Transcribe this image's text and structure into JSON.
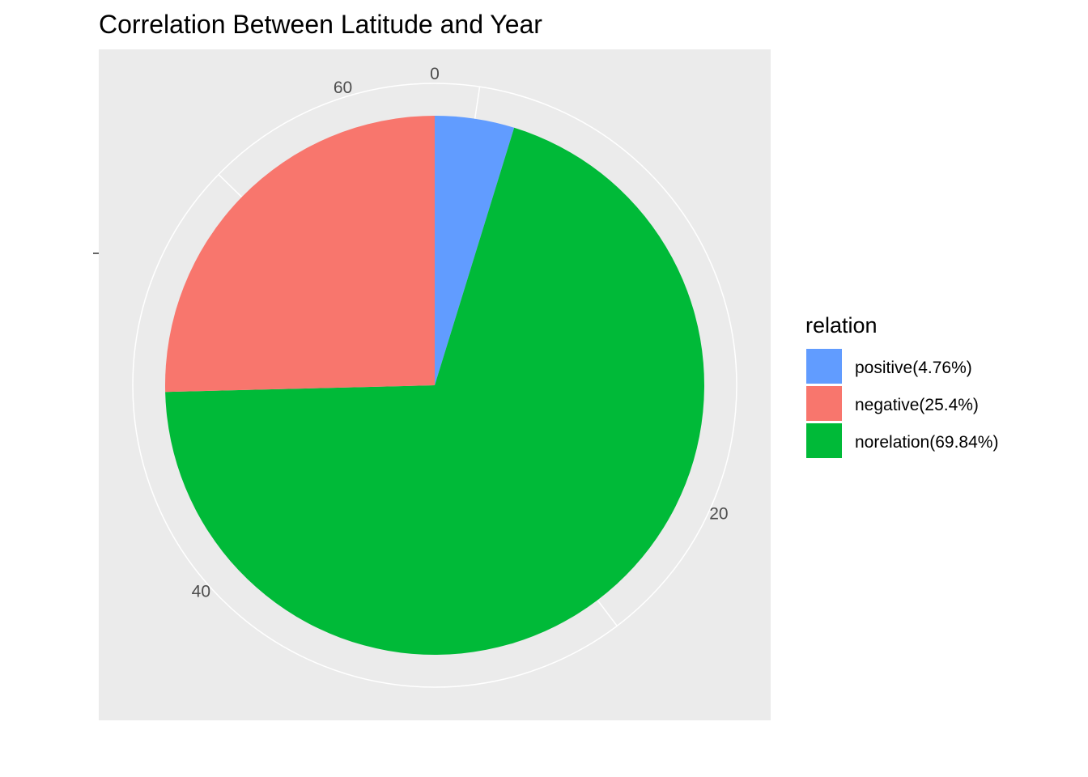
{
  "chart_data": {
    "type": "pie",
    "title": "Correlation Between Latitude and Year",
    "total": 63,
    "slices": [
      {
        "label": "positive(4.76%)",
        "value": 3,
        "color": "#619CFF"
      },
      {
        "label": "norelation(69.84%)",
        "value": 44,
        "color": "#00BA38"
      },
      {
        "label": "negative(25.4%)",
        "value": 16,
        "color": "#F8766D"
      }
    ],
    "axis_ticks": [
      0,
      20,
      40,
      60
    ],
    "grid": true,
    "panel_background": "#EBEBEB",
    "legend": {
      "title": "relation",
      "position": "right",
      "entries": [
        {
          "label": "positive(4.76%)",
          "color": "#619CFF"
        },
        {
          "label": "negative(25.4%)",
          "color": "#F8766D"
        },
        {
          "label": "norelation(69.84%)",
          "color": "#00BA38"
        }
      ]
    }
  }
}
